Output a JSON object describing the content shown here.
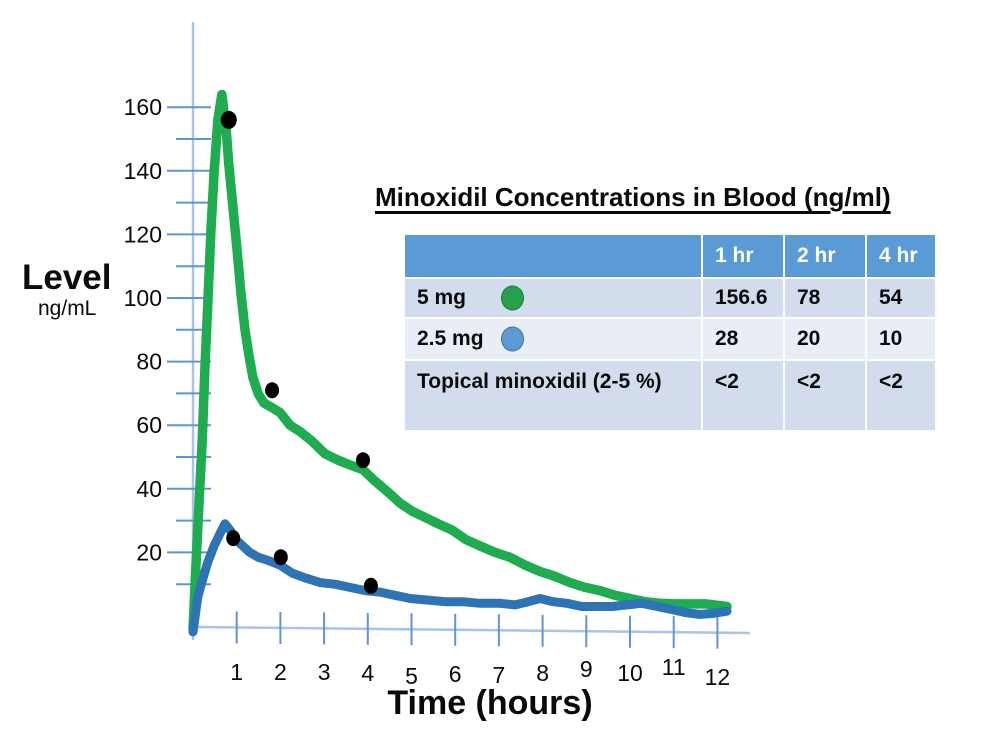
{
  "page": {
    "background": "#ffffff"
  },
  "axes": {
    "y_title": "Level",
    "y_units": "ng/mL",
    "x_title": "Time (hours)"
  },
  "chart_data": {
    "type": "line",
    "title": "",
    "xlabel": "Time (hours)",
    "ylabel": "Level (ng/mL)",
    "xlim": [
      0,
      12.7
    ],
    "ylim": [
      0,
      170
    ],
    "grid": false,
    "legend_position": "in-table",
    "axis_color": "#a6c5e8",
    "tick_color": "#5e96d2",
    "dot_color": "#000000",
    "x_ticks": [
      1,
      2,
      3,
      4,
      5,
      6,
      7,
      8,
      9,
      10,
      11,
      12
    ],
    "y_ticks": [
      20,
      40,
      60,
      80,
      100,
      120,
      140,
      160
    ],
    "series": [
      {
        "name": "5 mg",
        "color": "#1fab4f",
        "points": [
          [
            0,
            -4
          ],
          [
            0.07,
            17
          ],
          [
            0.14,
            36
          ],
          [
            0.21,
            55
          ],
          [
            0.27,
            77
          ],
          [
            0.34,
            99
          ],
          [
            0.41,
            121
          ],
          [
            0.48,
            139
          ],
          [
            0.57,
            156
          ],
          [
            0.66,
            164
          ],
          [
            0.76,
            153
          ],
          [
            0.82,
            142
          ],
          [
            0.89,
            132
          ],
          [
            1.01,
            115
          ],
          [
            1.1,
            101
          ],
          [
            1.19,
            90
          ],
          [
            1.28,
            82
          ],
          [
            1.37,
            75
          ],
          [
            1.49,
            70
          ],
          [
            1.62,
            67
          ],
          [
            1.81,
            65.5
          ],
          [
            1.99,
            64
          ],
          [
            2.22,
            60
          ],
          [
            2.45,
            58
          ],
          [
            2.72,
            55
          ],
          [
            3.02,
            51
          ],
          [
            3.32,
            49
          ],
          [
            3.59,
            47.5
          ],
          [
            3.89,
            46
          ],
          [
            4.16,
            42.5
          ],
          [
            4.46,
            39
          ],
          [
            4.74,
            35.5
          ],
          [
            5.01,
            33
          ],
          [
            5.31,
            31
          ],
          [
            5.61,
            29
          ],
          [
            5.93,
            27
          ],
          [
            6.25,
            24
          ],
          [
            6.57,
            22
          ],
          [
            6.91,
            20
          ],
          [
            7.25,
            18.5
          ],
          [
            7.6,
            16
          ],
          [
            7.94,
            14
          ],
          [
            8.28,
            12.5
          ],
          [
            8.63,
            10.5
          ],
          [
            8.97,
            9
          ],
          [
            9.31,
            8
          ],
          [
            9.66,
            6.5
          ],
          [
            10,
            5.5
          ],
          [
            10.34,
            4.5
          ],
          [
            10.69,
            4
          ],
          [
            11.03,
            3.8
          ],
          [
            11.37,
            3.8
          ],
          [
            11.72,
            3.8
          ],
          [
            12.22,
            3
          ]
        ]
      },
      {
        "name": "2.5 mg",
        "color": "#2e74b5",
        "points": [
          [
            0,
            -5
          ],
          [
            0.11,
            6
          ],
          [
            0.23,
            12
          ],
          [
            0.34,
            17
          ],
          [
            0.48,
            22
          ],
          [
            0.62,
            26
          ],
          [
            0.73,
            29
          ],
          [
            0.85,
            27
          ],
          [
            0.98,
            24
          ],
          [
            1.14,
            22
          ],
          [
            1.3,
            20
          ],
          [
            1.49,
            18.5
          ],
          [
            1.72,
            17.5
          ],
          [
            1.99,
            16
          ],
          [
            2.27,
            13.5
          ],
          [
            2.56,
            12
          ],
          [
            2.91,
            10.5
          ],
          [
            3.25,
            10
          ],
          [
            3.59,
            9
          ],
          [
            3.94,
            8
          ],
          [
            4.28,
            7.5
          ],
          [
            4.62,
            6.5
          ],
          [
            4.97,
            5.5
          ],
          [
            5.38,
            5
          ],
          [
            5.77,
            4.5
          ],
          [
            6.16,
            4.5
          ],
          [
            6.57,
            4
          ],
          [
            7.03,
            4
          ],
          [
            7.37,
            3.5
          ],
          [
            7.67,
            4.5
          ],
          [
            7.94,
            5.5
          ],
          [
            8.24,
            4.5
          ],
          [
            8.56,
            4
          ],
          [
            8.9,
            3
          ],
          [
            9.24,
            3
          ],
          [
            9.59,
            3
          ],
          [
            9.93,
            3.5
          ],
          [
            10.27,
            4
          ],
          [
            10.62,
            3
          ],
          [
            10.96,
            2
          ],
          [
            11.3,
            1
          ],
          [
            11.6,
            0.5
          ],
          [
            11.88,
            0.8
          ],
          [
            12.22,
            1.5
          ]
        ]
      }
    ],
    "marked_points": [
      {
        "series": "5 mg",
        "x": 0.82,
        "y": 156
      },
      {
        "series": "5 mg",
        "x": 1.81,
        "y": 71
      },
      {
        "series": "5 mg",
        "x": 3.89,
        "y": 49
      },
      {
        "series": "2.5 mg",
        "x": 0.92,
        "y": 24.5
      },
      {
        "series": "2.5 mg",
        "x": 2.01,
        "y": 18.5
      },
      {
        "series": "2.5 mg",
        "x": 4.07,
        "y": 9.5
      }
    ]
  },
  "table": {
    "title": "Minoxidil Concentrations in Blood (ng/ml)",
    "header": {
      "bg": "#5b9bd5",
      "labels": [
        "",
        "1 hr",
        "2 hr",
        "4 hr"
      ]
    },
    "rows": [
      {
        "label": "5 mg",
        "marker_color": "#25a24b",
        "bg": "#d3dcec",
        "values": [
          "156.6",
          "78",
          "54"
        ]
      },
      {
        "label": "2.5 mg",
        "marker_color": "#5b9bd5",
        "bg": "#e9edf5",
        "values": [
          "28",
          "20",
          "10"
        ]
      },
      {
        "label": "Topical minoxidil (2-5 %)",
        "marker_color": null,
        "bg": "#d3dcec",
        "values": [
          "<2",
          "<2",
          "<2"
        ]
      }
    ]
  }
}
